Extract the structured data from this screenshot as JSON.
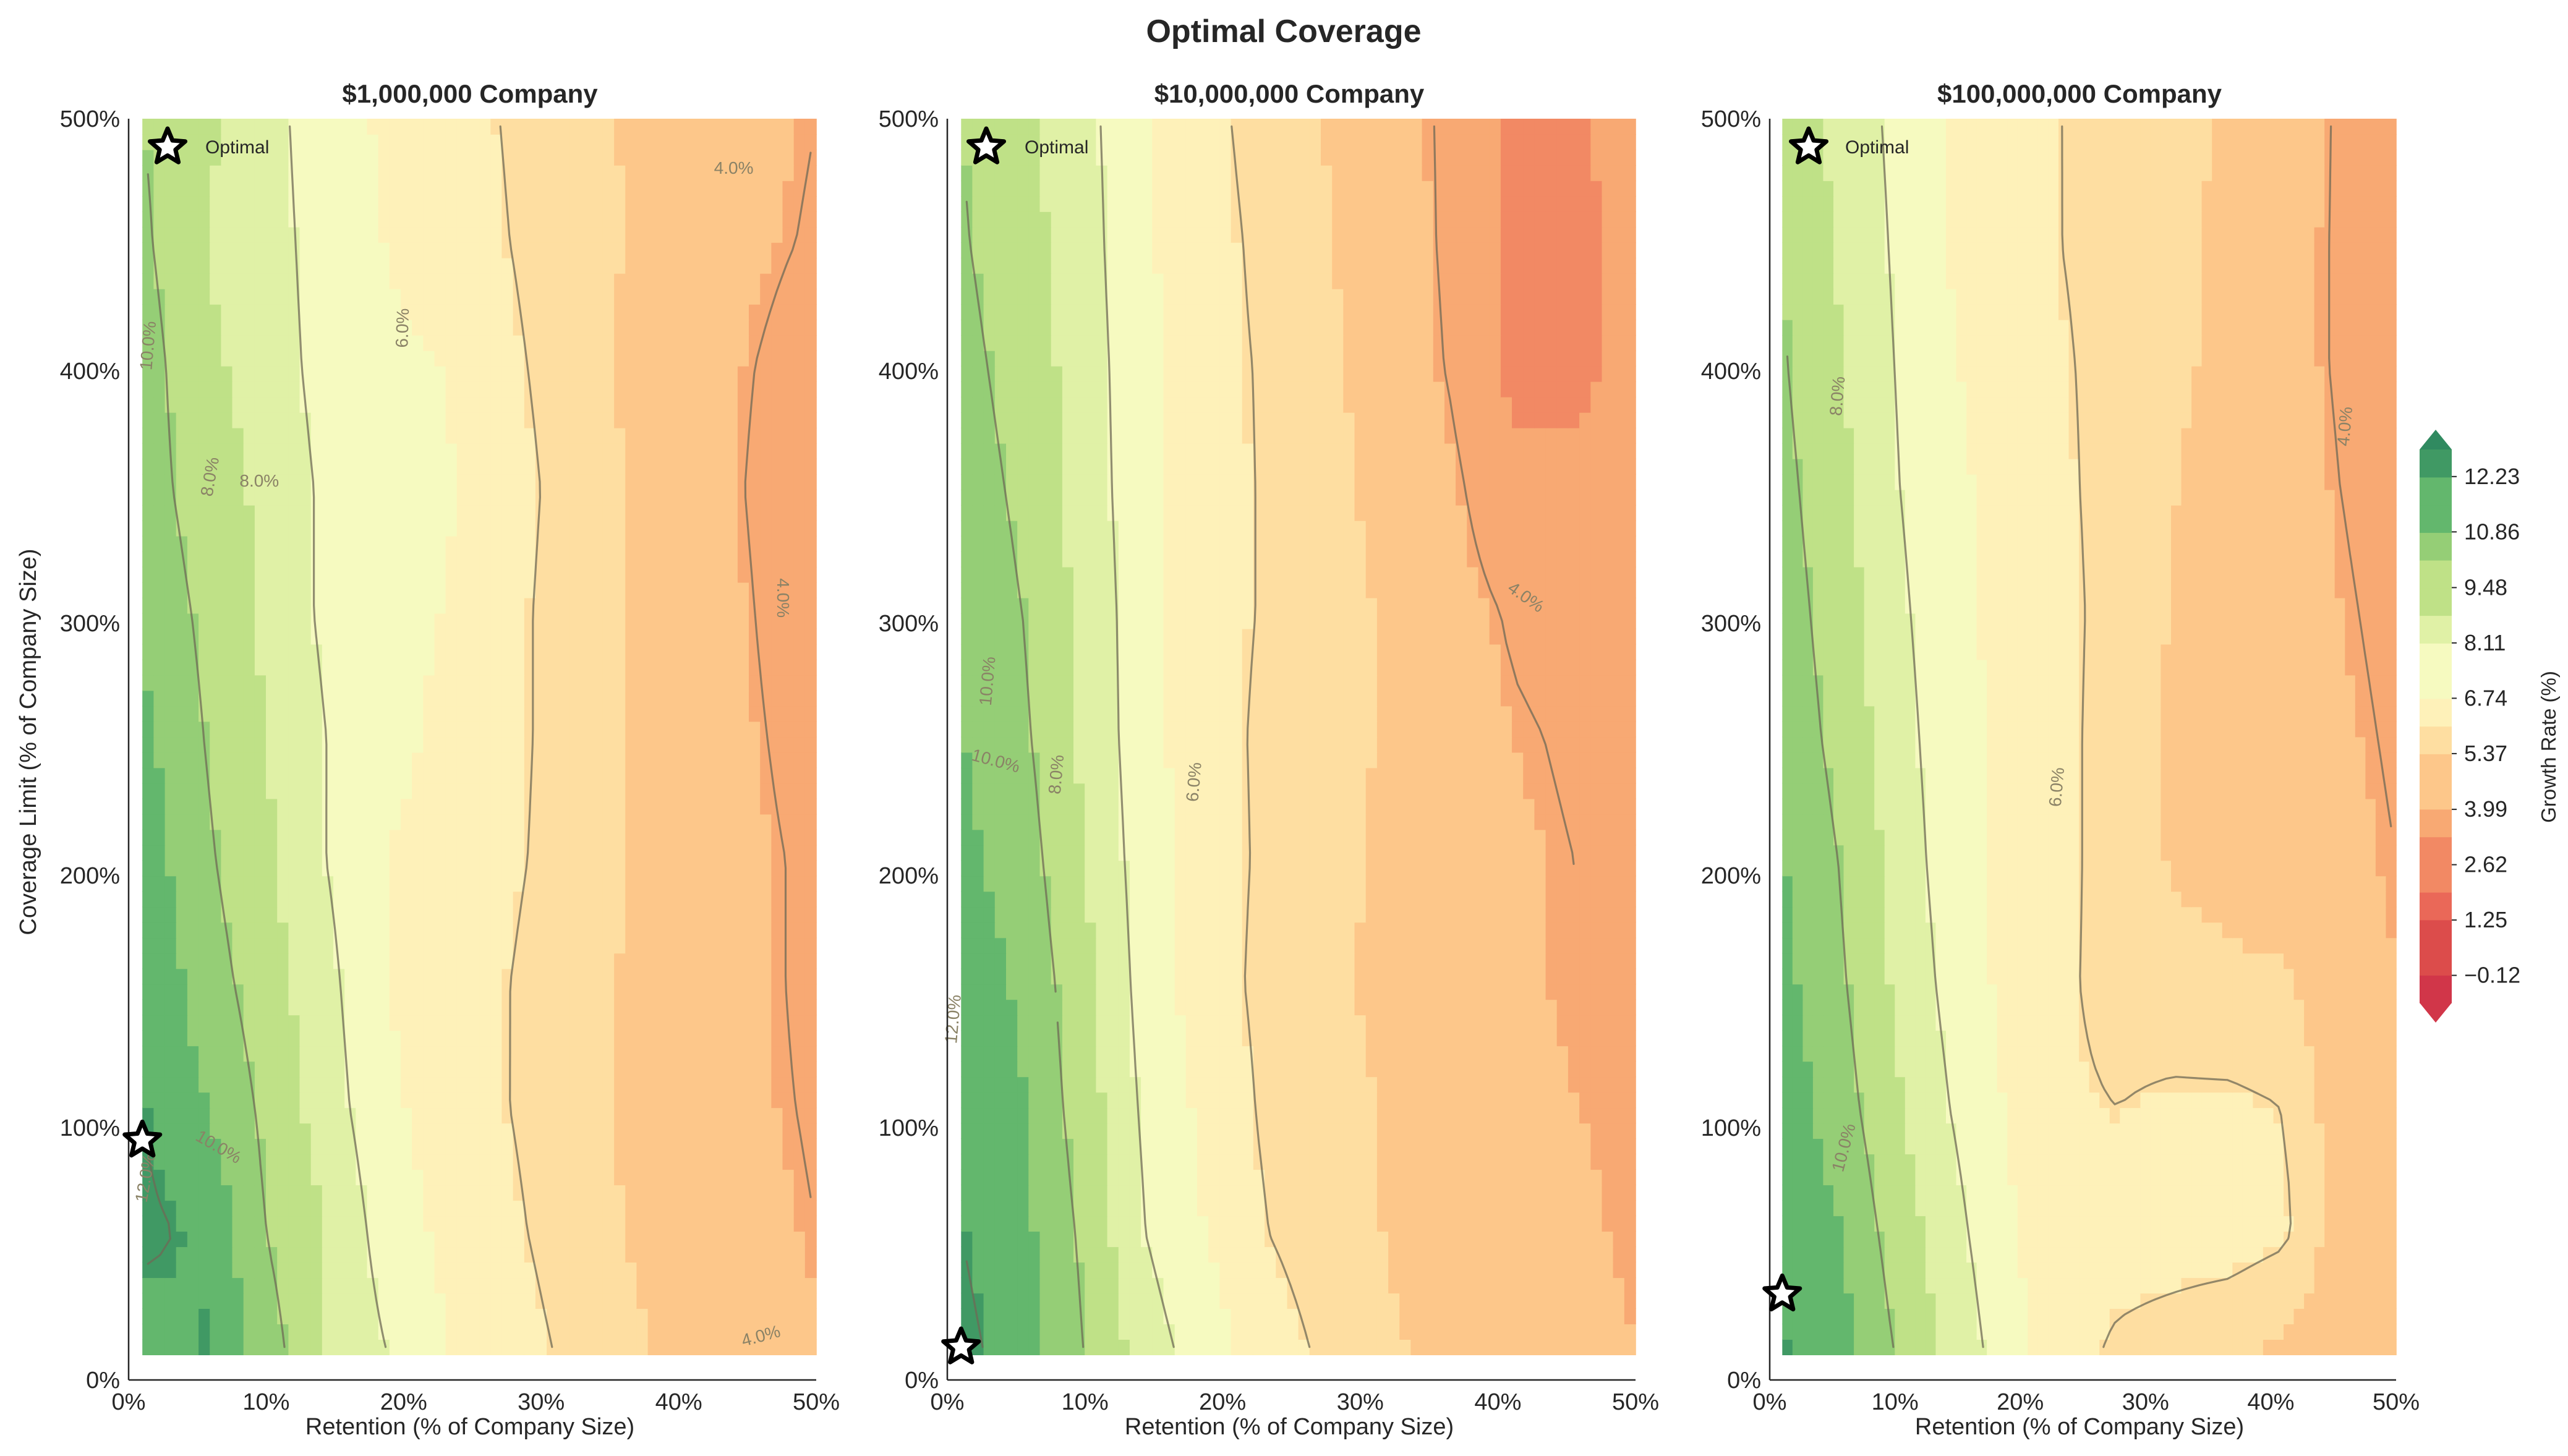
{
  "chart_data": {
    "type": "heatmap",
    "title": "Optimal Coverage",
    "colormap": "RdYlGn",
    "colorbar": {
      "label": "Growth Rate (%)",
      "ticks": [
        "−0.12",
        "1.25",
        "2.62",
        "3.99",
        "5.37",
        "6.74",
        "8.11",
        "9.48",
        "10.86",
        "12.23"
      ],
      "tick_values": [
        -0.12,
        1.25,
        2.62,
        3.99,
        5.37,
        6.74,
        8.11,
        9.48,
        10.86,
        12.23
      ],
      "range": [
        -0.8,
        12.9
      ],
      "extend": "both"
    },
    "x_ticks": [
      "0%",
      "10%",
      "20%",
      "30%",
      "40%",
      "50%"
    ],
    "y_ticks": [
      "0%",
      "100%",
      "200%",
      "300%",
      "400%",
      "500%"
    ],
    "xlabel": "Retention (% of Company Size)",
    "ylabel": "Coverage Limit (% of Company Size)",
    "xlim": [
      0,
      50
    ],
    "ylim": [
      0,
      500
    ],
    "data_extent": {
      "x": [
        1,
        50
      ],
      "y": [
        10,
        500
      ]
    },
    "legend": {
      "label": "Optimal",
      "placement": "upper-left"
    },
    "panels": [
      {
        "title": "$1,000,000 Company",
        "optimal": {
          "retention_pct": 1,
          "limit_pct": 95
        },
        "contour_labels": [
          {
            "text": "10.0%",
            "x": 1.5,
            "y": 410,
            "rot": -85
          },
          {
            "text": "8.0%",
            "x": 6,
            "y": 358,
            "rot": -80
          },
          {
            "text": "8.0%",
            "x": 9.5,
            "y": 356,
            "rot": 0
          },
          {
            "text": "6.0%",
            "x": 20,
            "y": 417,
            "rot": -88
          },
          {
            "text": "4.0%",
            "x": 44,
            "y": 480,
            "rot": 0
          },
          {
            "text": "4.0%",
            "x": 47.5,
            "y": 310,
            "rot": 90
          },
          {
            "text": "10.0%",
            "x": 6.5,
            "y": 92,
            "rot": 30
          },
          {
            "text": "12.0%",
            "x": 1.3,
            "y": 80,
            "rot": -80
          },
          {
            "text": "4.0%",
            "x": 46,
            "y": 17,
            "rot": -15
          }
        ],
        "grid": [
          [
            11.5,
            12.0,
            10.5,
            9.0,
            8.0,
            7.0,
            6.5,
            5.8,
            5.2,
            4.8,
            4.5,
            4.2
          ],
          [
            12.2,
            11.8,
            10.0,
            9.0,
            7.5,
            6.8,
            6.2,
            5.5,
            5.0,
            4.6,
            4.3,
            4.0
          ],
          [
            12.0,
            11.0,
            9.8,
            8.5,
            7.2,
            6.6,
            6.0,
            5.4,
            4.9,
            4.6,
            4.2,
            3.9
          ],
          [
            11.8,
            10.5,
            9.5,
            8.3,
            7.0,
            6.8,
            6.0,
            5.3,
            5.0,
            4.7,
            4.2,
            3.8
          ],
          [
            11.5,
            10.2,
            9.2,
            8.0,
            7.0,
            6.8,
            6.2,
            5.5,
            5.0,
            4.7,
            4.2,
            3.8
          ],
          [
            11.2,
            10.0,
            9.0,
            8.0,
            7.2,
            6.9,
            6.3,
            5.5,
            5.0,
            4.7,
            4.1,
            3.6
          ],
          [
            10.8,
            9.8,
            8.8,
            7.8,
            7.2,
            7.0,
            6.3,
            5.5,
            5.0,
            4.6,
            4.0,
            3.4
          ],
          [
            10.5,
            9.5,
            8.8,
            7.8,
            7.3,
            7.1,
            6.4,
            5.6,
            5.0,
            4.5,
            3.9,
            3.3
          ],
          [
            10.5,
            9.2,
            8.6,
            7.6,
            7.2,
            7.0,
            6.2,
            5.5,
            4.9,
            4.5,
            4.0,
            3.6
          ],
          [
            10.2,
            9.0,
            8.5,
            7.5,
            7.0,
            6.6,
            6.0,
            5.4,
            5.0,
            4.7,
            4.2,
            3.9
          ],
          [
            10.0,
            9.2,
            8.4,
            7.4,
            6.9,
            6.5,
            5.9,
            5.3,
            5.0,
            4.7,
            4.3,
            4.0
          ]
        ]
      },
      {
        "title": "$10,000,000 Company",
        "optimal": {
          "retention_pct": 1,
          "limit_pct": 13
        },
        "contour_labels": [
          {
            "text": "10.0%",
            "x": 3,
            "y": 277,
            "rot": -85
          },
          {
            "text": "10.0%",
            "x": 3.5,
            "y": 245,
            "rot": 15
          },
          {
            "text": "8.0%",
            "x": 8,
            "y": 240,
            "rot": -85
          },
          {
            "text": "6.0%",
            "x": 18,
            "y": 237,
            "rot": -85
          },
          {
            "text": "4.0%",
            "x": 42,
            "y": 310,
            "rot": 35
          },
          {
            "text": "12.0%",
            "x": 0.5,
            "y": 143,
            "rot": -85
          }
        ],
        "grid": [
          [
            12.3,
            11.5,
            10.0,
            8.5,
            7.5,
            6.5,
            5.8,
            5.2,
            4.8,
            4.5,
            4.3,
            4.1
          ],
          [
            12.0,
            11.2,
            9.8,
            8.0,
            7.0,
            6.0,
            5.5,
            5.0,
            4.7,
            4.4,
            4.2,
            4.0
          ],
          [
            11.8,
            11.0,
            9.5,
            7.8,
            6.8,
            5.8,
            5.3,
            5.0,
            4.6,
            4.3,
            4.1,
            4.0
          ],
          [
            11.5,
            10.8,
            9.3,
            7.6,
            6.5,
            5.7,
            5.2,
            4.9,
            4.5,
            4.2,
            4.0,
            4.0
          ],
          [
            11.2,
            10.5,
            9.0,
            7.5,
            6.5,
            5.8,
            5.3,
            4.9,
            4.5,
            4.2,
            4.0,
            4.0
          ],
          [
            11.0,
            10.2,
            8.8,
            7.4,
            6.4,
            5.8,
            5.3,
            5.0,
            4.5,
            4.1,
            3.9,
            3.9
          ],
          [
            10.7,
            10.0,
            8.7,
            7.4,
            6.4,
            5.9,
            5.3,
            5.0,
            4.4,
            3.9,
            3.7,
            3.8
          ],
          [
            10.5,
            9.8,
            8.6,
            7.3,
            6.4,
            5.9,
            5.3,
            4.8,
            4.2,
            3.3,
            3.3,
            3.6
          ],
          [
            10.3,
            9.6,
            8.5,
            7.3,
            6.3,
            5.9,
            5.2,
            4.7,
            3.9,
            2.9,
            2.9,
            3.4
          ],
          [
            10.1,
            9.4,
            8.4,
            7.2,
            6.3,
            5.8,
            5.1,
            4.6,
            3.8,
            2.9,
            2.9,
            3.4
          ],
          [
            10.0,
            9.2,
            8.3,
            7.2,
            6.2,
            5.7,
            5.0,
            4.5,
            3.8,
            3.0,
            3.0,
            3.4
          ]
        ]
      },
      {
        "title": "$100,000,000 Company",
        "optimal": {
          "retention_pct": 1,
          "limit_pct": 34
        },
        "contour_labels": [
          {
            "text": "8.0%",
            "x": 5.5,
            "y": 390,
            "rot": -85
          },
          {
            "text": "6.0%",
            "x": 23,
            "y": 235,
            "rot": -85
          },
          {
            "text": "4.0%",
            "x": 46,
            "y": 378,
            "rot": -85
          },
          {
            "text": "10.0%",
            "x": 6,
            "y": 92,
            "rot": -75
          }
        ],
        "grid": [
          [
            12.0,
            11.5,
            10.0,
            8.8,
            7.5,
            6.5,
            5.8,
            5.5,
            5.2,
            4.8,
            4.5,
            4.3
          ],
          [
            11.8,
            11.0,
            9.6,
            8.4,
            7.2,
            6.3,
            6.5,
            6.5,
            6.5,
            6.2,
            4.5,
            4.3
          ],
          [
            11.5,
            10.5,
            9.2,
            8.0,
            7.0,
            6.2,
            6.0,
            6.2,
            6.2,
            6.0,
            4.5,
            4.2
          ],
          [
            11.2,
            10.2,
            8.9,
            7.7,
            6.8,
            6.2,
            5.6,
            5.4,
            5.3,
            5.2,
            4.4,
            4.1
          ],
          [
            11.0,
            10.0,
            8.7,
            7.5,
            6.8,
            6.3,
            5.5,
            5.0,
            4.7,
            4.5,
            4.3,
            4.0
          ],
          [
            10.7,
            9.7,
            8.5,
            7.4,
            6.8,
            6.3,
            5.5,
            5.0,
            4.7,
            4.5,
            4.2,
            3.9
          ],
          [
            10.5,
            9.5,
            8.3,
            7.3,
            6.8,
            6.3,
            5.6,
            5.0,
            4.8,
            4.5,
            4.1,
            3.8
          ],
          [
            10.3,
            9.3,
            8.1,
            7.2,
            6.8,
            6.2,
            5.6,
            5.1,
            4.8,
            4.5,
            4.0,
            3.7
          ],
          [
            10.1,
            9.1,
            8.0,
            7.1,
            6.7,
            6.1,
            5.7,
            5.2,
            4.9,
            4.4,
            3.9,
            3.6
          ],
          [
            10.0,
            8.9,
            7.9,
            7.0,
            6.6,
            6.0,
            5.7,
            5.2,
            4.9,
            4.4,
            3.9,
            3.6
          ],
          [
            9.8,
            8.7,
            7.8,
            7.0,
            6.5,
            6.0,
            5.7,
            5.3,
            5.0,
            4.5,
            3.9,
            3.5
          ]
        ]
      }
    ]
  }
}
